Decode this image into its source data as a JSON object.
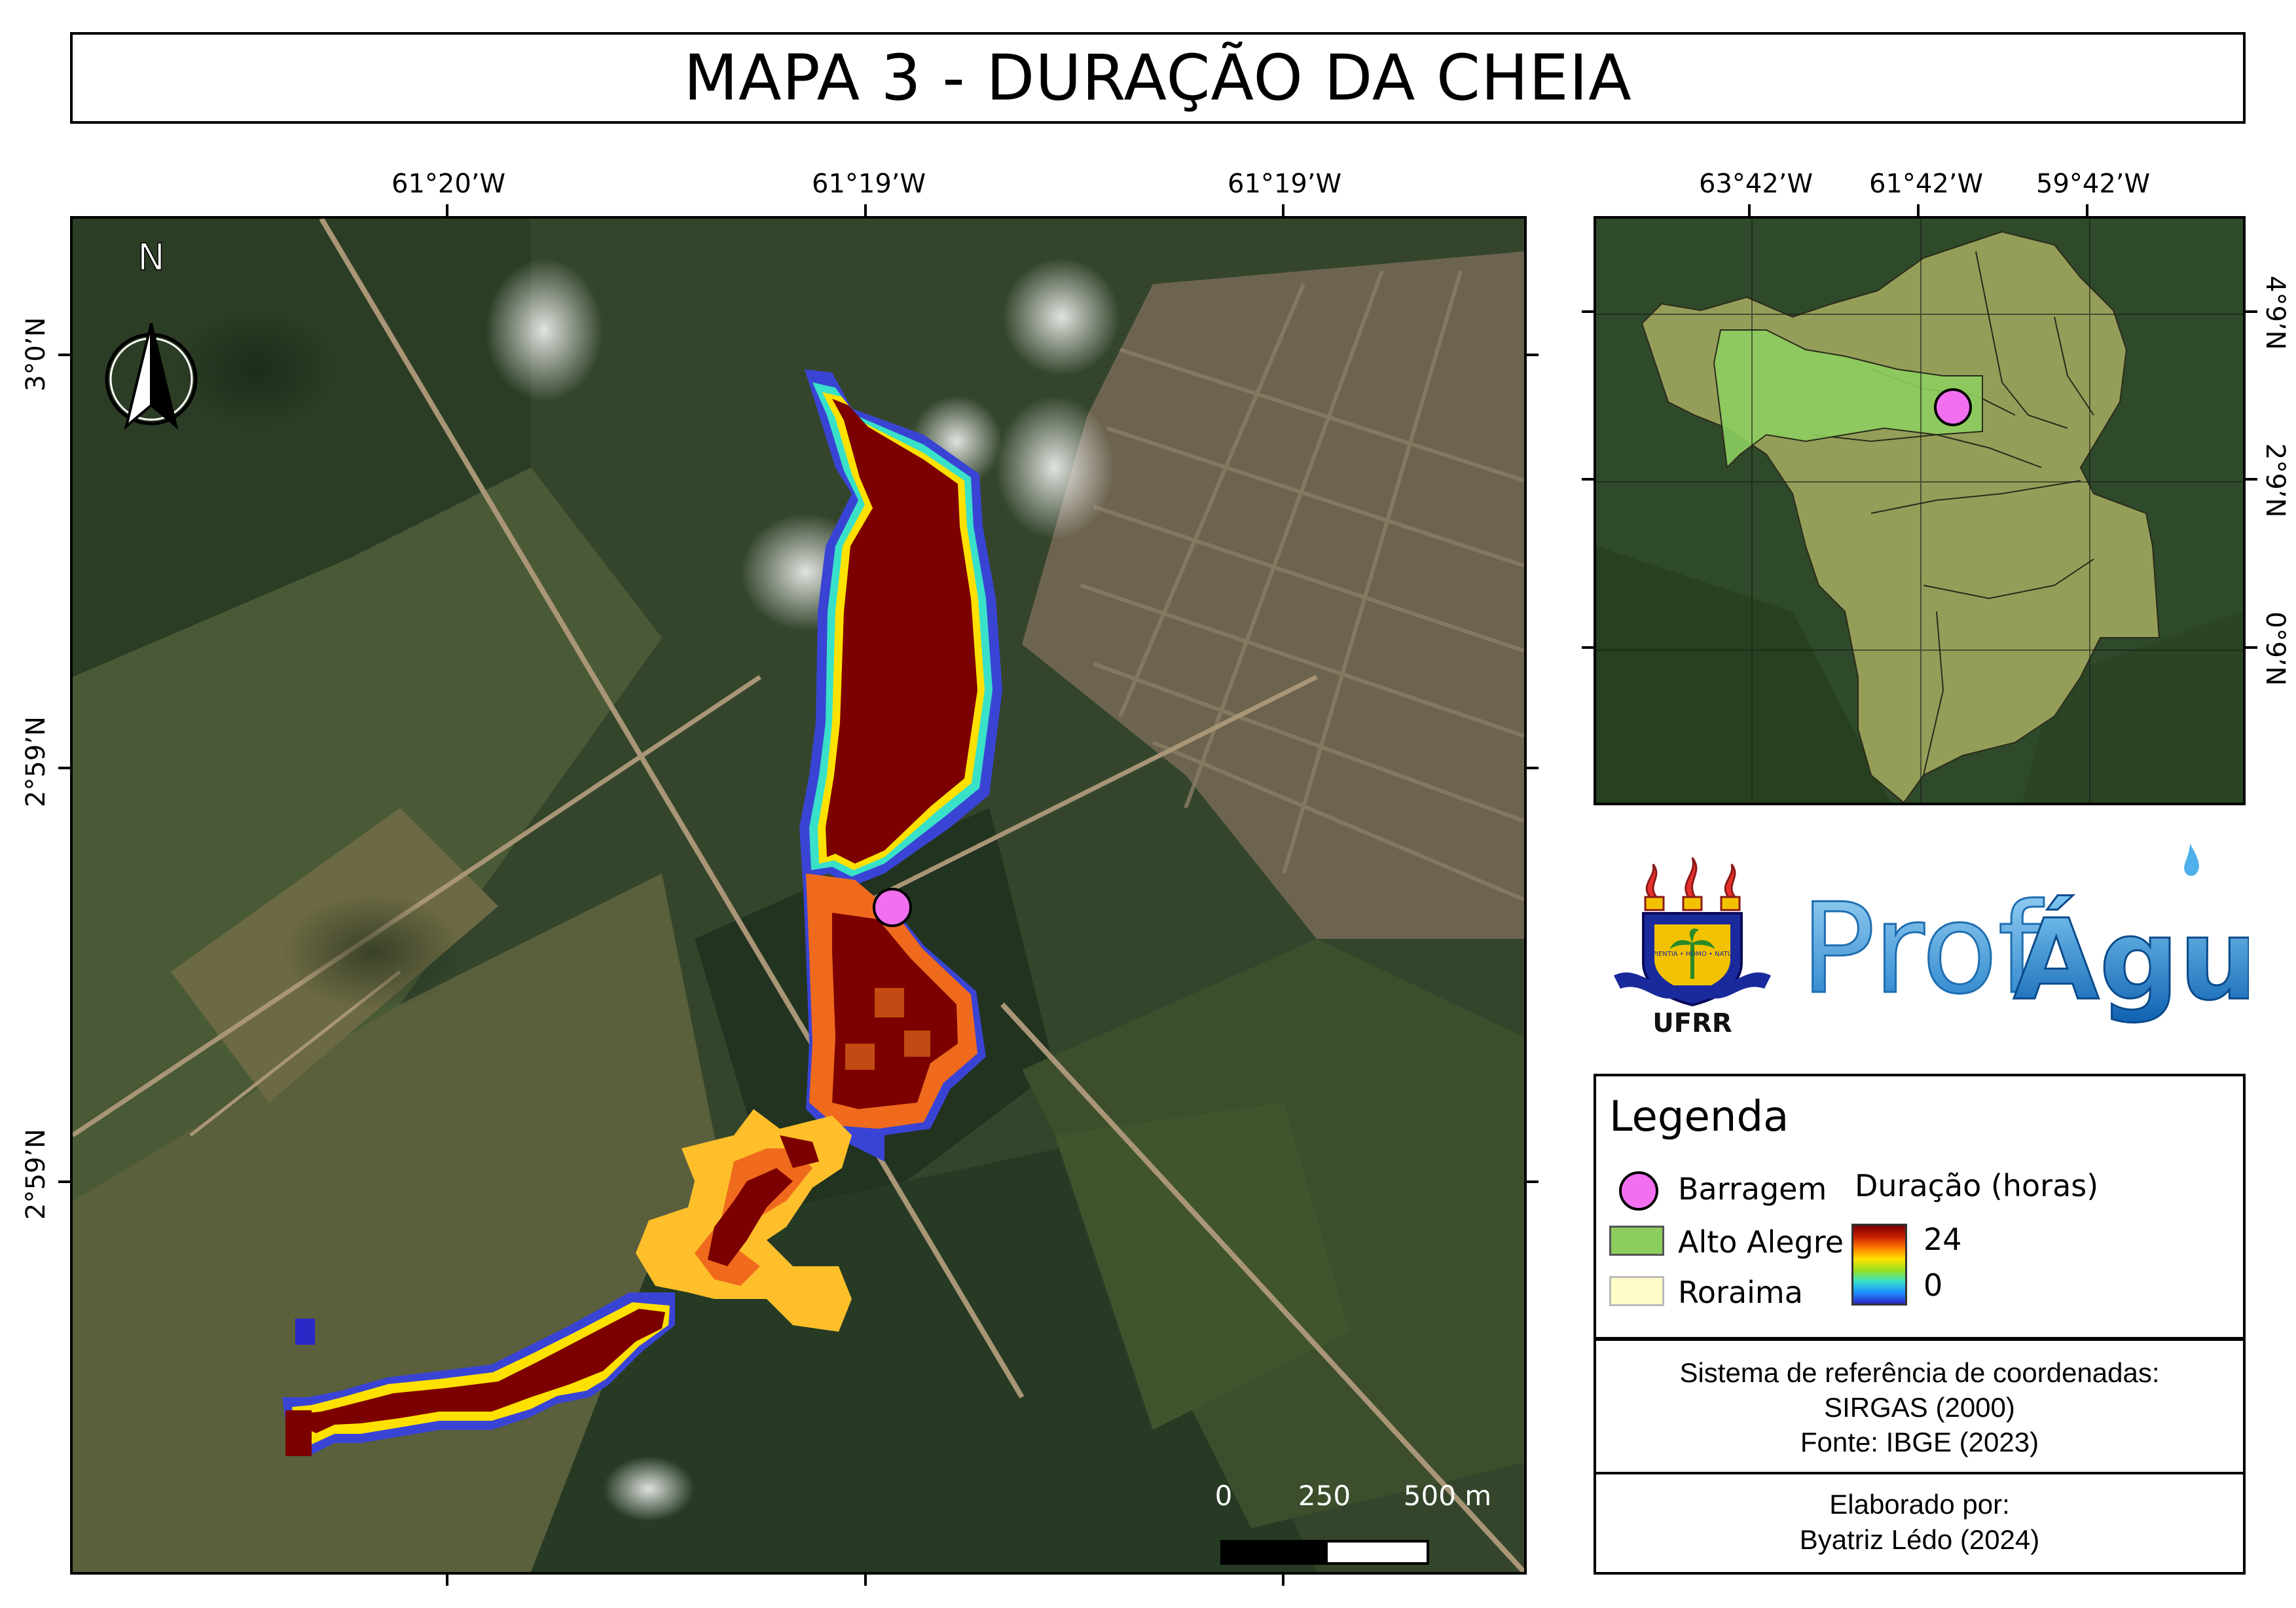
{
  "title": "MAPA 3 - DURAÇÃO DA CHEIA",
  "main_map": {
    "top_lon_labels": [
      "61°20’W",
      "61°19’W",
      "61°19’W"
    ],
    "left_lat_labels": [
      "3°0’N",
      "2°59’N",
      "2°59’N"
    ],
    "north_label": "N",
    "scale_bar": {
      "labels": [
        "0",
        "250",
        "500 m"
      ]
    }
  },
  "inset_map": {
    "top_lon_labels": [
      "63°42’W",
      "61°42’W",
      "59°42’W"
    ],
    "right_lat_labels": [
      "4°9’N",
      "2°9’N",
      "0°9’N"
    ]
  },
  "logos": {
    "ufrr_label": "UFRR",
    "ufrr_motto": "SAPIENTIA • HOMO • NATURA",
    "profagua_label_prof": "Prof",
    "profagua_label_agua": "Água"
  },
  "legend": {
    "title": "Legenda",
    "items": [
      {
        "label": "Barragem",
        "color": "#f26ff0"
      },
      {
        "label": "Alto Alegre",
        "color": "#8ccd5e"
      },
      {
        "label": "Roraima",
        "color": "#fdfbc6"
      }
    ],
    "gradient_title": "Duração (horas)",
    "gradient_max": "24",
    "gradient_min": "0",
    "gradient_colors": [
      "#2929c8",
      "#1e90ff",
      "#38e1c8",
      "#9be11e",
      "#ffe100",
      "#ff7a00",
      "#c81e00",
      "#7a0000"
    ]
  },
  "crs_block": {
    "line1": "Sistema de referência de coordenadas:",
    "line2": "SIRGAS (2000)",
    "line3": "Fonte: IBGE (2023)"
  },
  "author_block": {
    "line1": "Elaborado por:",
    "line2": "Byatriz Lédo (2024)"
  },
  "colors": {
    "flood_max": "#7d0000",
    "flood_orange": "#f06a1e",
    "flood_yellow": "#ffbf2a",
    "flood_edge_blue": "#3a44d4",
    "dam_marker": "#f26ff0"
  }
}
